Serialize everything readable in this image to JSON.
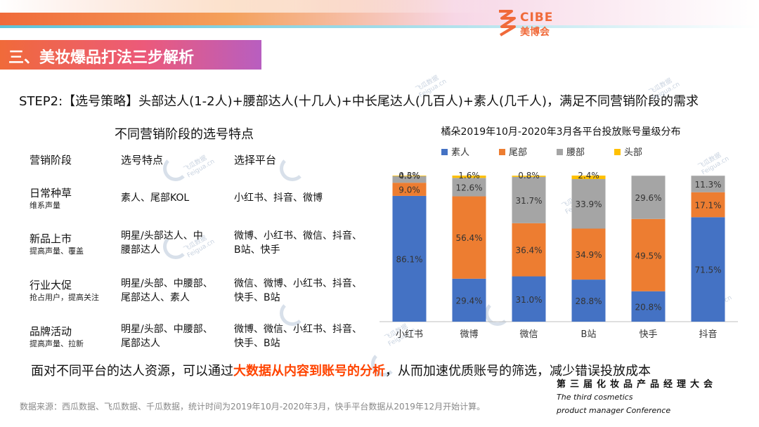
{
  "logo": {
    "en": "CIBE",
    "cn": "美博会"
  },
  "section_title": "三、美妆爆品打法三步解析",
  "step_text": "STEP2:【选号策略】头部达人(1-2人)+腰部达人(十几人)+中长尾达人(几百人)+素人(几千人)，满足不同营销阶段的需求",
  "table": {
    "title": "不同营销阶段的选号特点",
    "headers": [
      "营销阶段",
      "选号特点",
      "选择平台"
    ],
    "rows": [
      {
        "stage": "日常种草",
        "sub": "维系声量",
        "feature": [
          "素人、尾部KOL"
        ],
        "platform": [
          "小红书、抖音、微博"
        ]
      },
      {
        "stage": "新品上市",
        "sub": "提高声量、覆盖",
        "feature": [
          "明星/头部达人、中",
          "腰部达人"
        ],
        "platform": [
          "微博、小红书、微信、抖音、",
          "B站、快手"
        ]
      },
      {
        "stage": "行业大促",
        "sub": "抢占用户，提高关注",
        "feature": [
          "明星/头部、中腰部、",
          "尾部达人、素人"
        ],
        "platform": [
          "微信、微博、小红书、抖音、",
          "快手、B站"
        ]
      },
      {
        "stage": "品牌活动",
        "sub": "提高声量、拉新",
        "feature": [
          "明星/头部、中腰部、",
          "尾部达人"
        ],
        "platform": [
          "微博、微信、小红书、抖音、",
          "快手、B站"
        ]
      }
    ]
  },
  "bottom": {
    "before": "面对不同平台的达人资源，可以通过",
    "highlight": "大数据从内容到账号的分析",
    "after": "，从而加速优质账号的筛选，减少错误投放成本"
  },
  "conference": {
    "cn": "第三届化妆品产品经理大会",
    "en_line1": "The third cosmetics",
    "en_line2": "product manager Conference"
  },
  "source": "数据来源：西瓜数据、飞瓜数据、千瓜数据，统计时间为2019年10月-2020年3月，快手平台数据从2019年12月开始计算。",
  "watermark": {
    "cn": "飞瓜数据",
    "en": "Feigua.cn"
  },
  "chart_data": {
    "type": "bar",
    "stacked": "100%",
    "title": "橘朵2019年10月-2020年3月各平台投放账号量级分布",
    "categories": [
      "小红书",
      "微博",
      "微信",
      "B站",
      "快手",
      "抖音"
    ],
    "series": [
      {
        "name": "素人",
        "color": "#4472c4",
        "values": [
          86.1,
          29.4,
          31.0,
          28.8,
          20.8,
          71.5
        ],
        "labels": [
          "86.1%",
          "29.4%",
          "31.0%",
          "28.8%",
          "20.8%",
          "71.5%"
        ]
      },
      {
        "name": "尾部",
        "color": "#ed7d31",
        "values": [
          9.0,
          56.4,
          36.4,
          34.9,
          49.5,
          17.1
        ],
        "labels": [
          "9.0%",
          "56.4%",
          "36.4%",
          "34.9%",
          "49.5%",
          "17.1%"
        ]
      },
      {
        "name": "腰部",
        "color": "#a5a5a5",
        "values": [
          4.6,
          12.6,
          31.7,
          33.9,
          29.6,
          11.3
        ],
        "labels": [
          "4.6%",
          "12.6%",
          "31.7%",
          "33.9%",
          "29.6%",
          "11.3%"
        ]
      },
      {
        "name": "头部",
        "color": "#ffc000",
        "values": [
          0.3,
          1.6,
          0.8,
          2.4,
          0.0,
          0.0
        ],
        "labels": [
          "0.3%",
          "1.6%",
          "0.8%",
          "2.4%",
          "",
          ""
        ]
      }
    ],
    "ylim": [
      0,
      100
    ],
    "legend": "top"
  }
}
